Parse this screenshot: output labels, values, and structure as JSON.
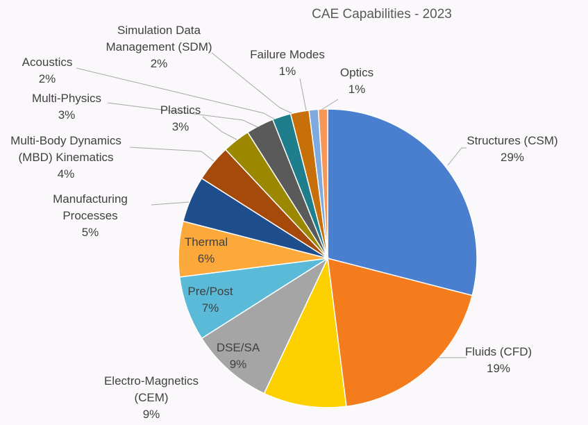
{
  "chart_data": {
    "type": "pie",
    "title": "CAE Capabilities - 2023",
    "start": "12 o'clock, clockwise",
    "legend": "none (data labels outside / inside slices)",
    "slices": [
      {
        "lines": [
          "Structures (CSM)",
          "29%"
        ],
        "value": 29,
        "color": "#4a7fd0"
      },
      {
        "lines": [
          "Fluids (CFD)",
          "19%"
        ],
        "value": 19,
        "color": "#f47c1c"
      },
      {
        "lines": [
          "Electro-Magnetics",
          "(CEM)",
          "9%"
        ],
        "value": 9,
        "color": "#fdd000"
      },
      {
        "lines": [
          "DSE/SA",
          "9%"
        ],
        "value": 9,
        "color": "#a5a5a5"
      },
      {
        "lines": [
          "Pre/Post",
          "7%"
        ],
        "value": 7,
        "color": "#5bbad8"
      },
      {
        "lines": [
          "Thermal",
          "6%"
        ],
        "value": 6,
        "color": "#fca93b"
      },
      {
        "lines": [
          "Manufacturing",
          "Processes",
          "5%"
        ],
        "value": 5,
        "color": "#1f4e8c"
      },
      {
        "lines": [
          "Multi-Body Dynamics",
          "(MBD) Kinematics",
          "4%"
        ],
        "value": 4,
        "color": "#a64a0b"
      },
      {
        "lines": [
          "Plastics",
          "3%"
        ],
        "value": 3,
        "color": "#9c8800"
      },
      {
        "lines": [
          "Multi-Physics",
          "3%"
        ],
        "value": 3,
        "color": "#5a5a5a"
      },
      {
        "lines": [
          "Acoustics",
          "2%"
        ],
        "value": 2,
        "color": "#1e7e8c"
      },
      {
        "lines": [
          "Simulation Data",
          "Management (SDM)",
          "2%"
        ],
        "value": 2,
        "color": "#c7700a"
      },
      {
        "lines": [
          "Failure Modes",
          "1%"
        ],
        "value": 1,
        "color": "#7faae0"
      },
      {
        "lines": [
          "Optics",
          "1%"
        ],
        "value": 1,
        "color": "#f4975a"
      }
    ]
  }
}
